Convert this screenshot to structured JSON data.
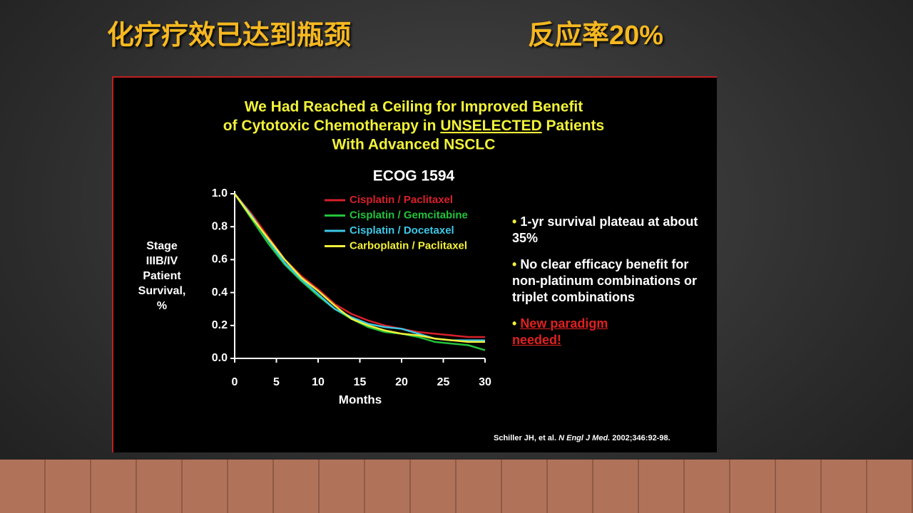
{
  "slide": {
    "headline": "化疗疗效已达到瓶颈",
    "headline_right": "反应率20%"
  },
  "chart_data": {
    "type": "line",
    "title": [
      "We Had Reached a Ceiling for Improved Benefit",
      [
        "of Cytotoxic Chemotherapy in",
        "UNSELECTED",
        "Patients"
      ],
      "With Advanced NSCLC"
    ],
    "subtitle": "ECOG 1594",
    "ylabel": [
      "Stage",
      "IIIB/IV",
      "Patient",
      "Survival,",
      "%"
    ],
    "xlabel": "Months",
    "x": [
      0,
      2,
      4,
      6,
      8,
      10,
      12,
      14,
      16,
      18,
      20,
      22,
      24,
      26,
      28,
      30
    ],
    "series": [
      {
        "name": "Cisplatin / Paclitaxel",
        "color": "#d8202a",
        "values": [
          1.0,
          0.88,
          0.74,
          0.6,
          0.5,
          0.42,
          0.33,
          0.27,
          0.23,
          0.2,
          0.18,
          0.16,
          0.15,
          0.14,
          0.13,
          0.13
        ]
      },
      {
        "name": "Cisplatin / Gemcitabine",
        "color": "#22c33a",
        "values": [
          1.0,
          0.85,
          0.7,
          0.57,
          0.47,
          0.38,
          0.3,
          0.24,
          0.19,
          0.16,
          0.15,
          0.13,
          0.1,
          0.09,
          0.08,
          0.05
        ]
      },
      {
        "name": "Cisplatin / Docetaxel",
        "color": "#3cc8e8",
        "values": [
          1.0,
          0.87,
          0.72,
          0.58,
          0.48,
          0.39,
          0.3,
          0.25,
          0.21,
          0.19,
          0.18,
          0.15,
          0.12,
          0.11,
          0.11,
          0.11
        ]
      },
      {
        "name": "Carboplatin / Paclitaxel",
        "color": "#f3f03a",
        "values": [
          1.0,
          0.86,
          0.73,
          0.6,
          0.49,
          0.41,
          0.32,
          0.24,
          0.2,
          0.17,
          0.15,
          0.14,
          0.12,
          0.11,
          0.1,
          0.1
        ]
      }
    ],
    "xlim": [
      0,
      30
    ],
    "xticks": [
      0,
      5,
      10,
      15,
      20,
      25,
      30
    ],
    "ylim": [
      0,
      1
    ],
    "yticks": [
      {
        "value": 0,
        "label": "0.0"
      },
      0.2,
      0.4,
      0.6,
      0.8,
      {
        "value": 1,
        "label": "1.0"
      }
    ],
    "annotations": [
      "1-yr survival plateau at about 35%",
      "No clear efficacy benefit for non-platinum combinations or triplet combinations",
      "New paradigm needed!"
    ],
    "citation": [
      "Schiller JH, et al.",
      "N Engl J Med.",
      "2002;346:92-98."
    ]
  }
}
